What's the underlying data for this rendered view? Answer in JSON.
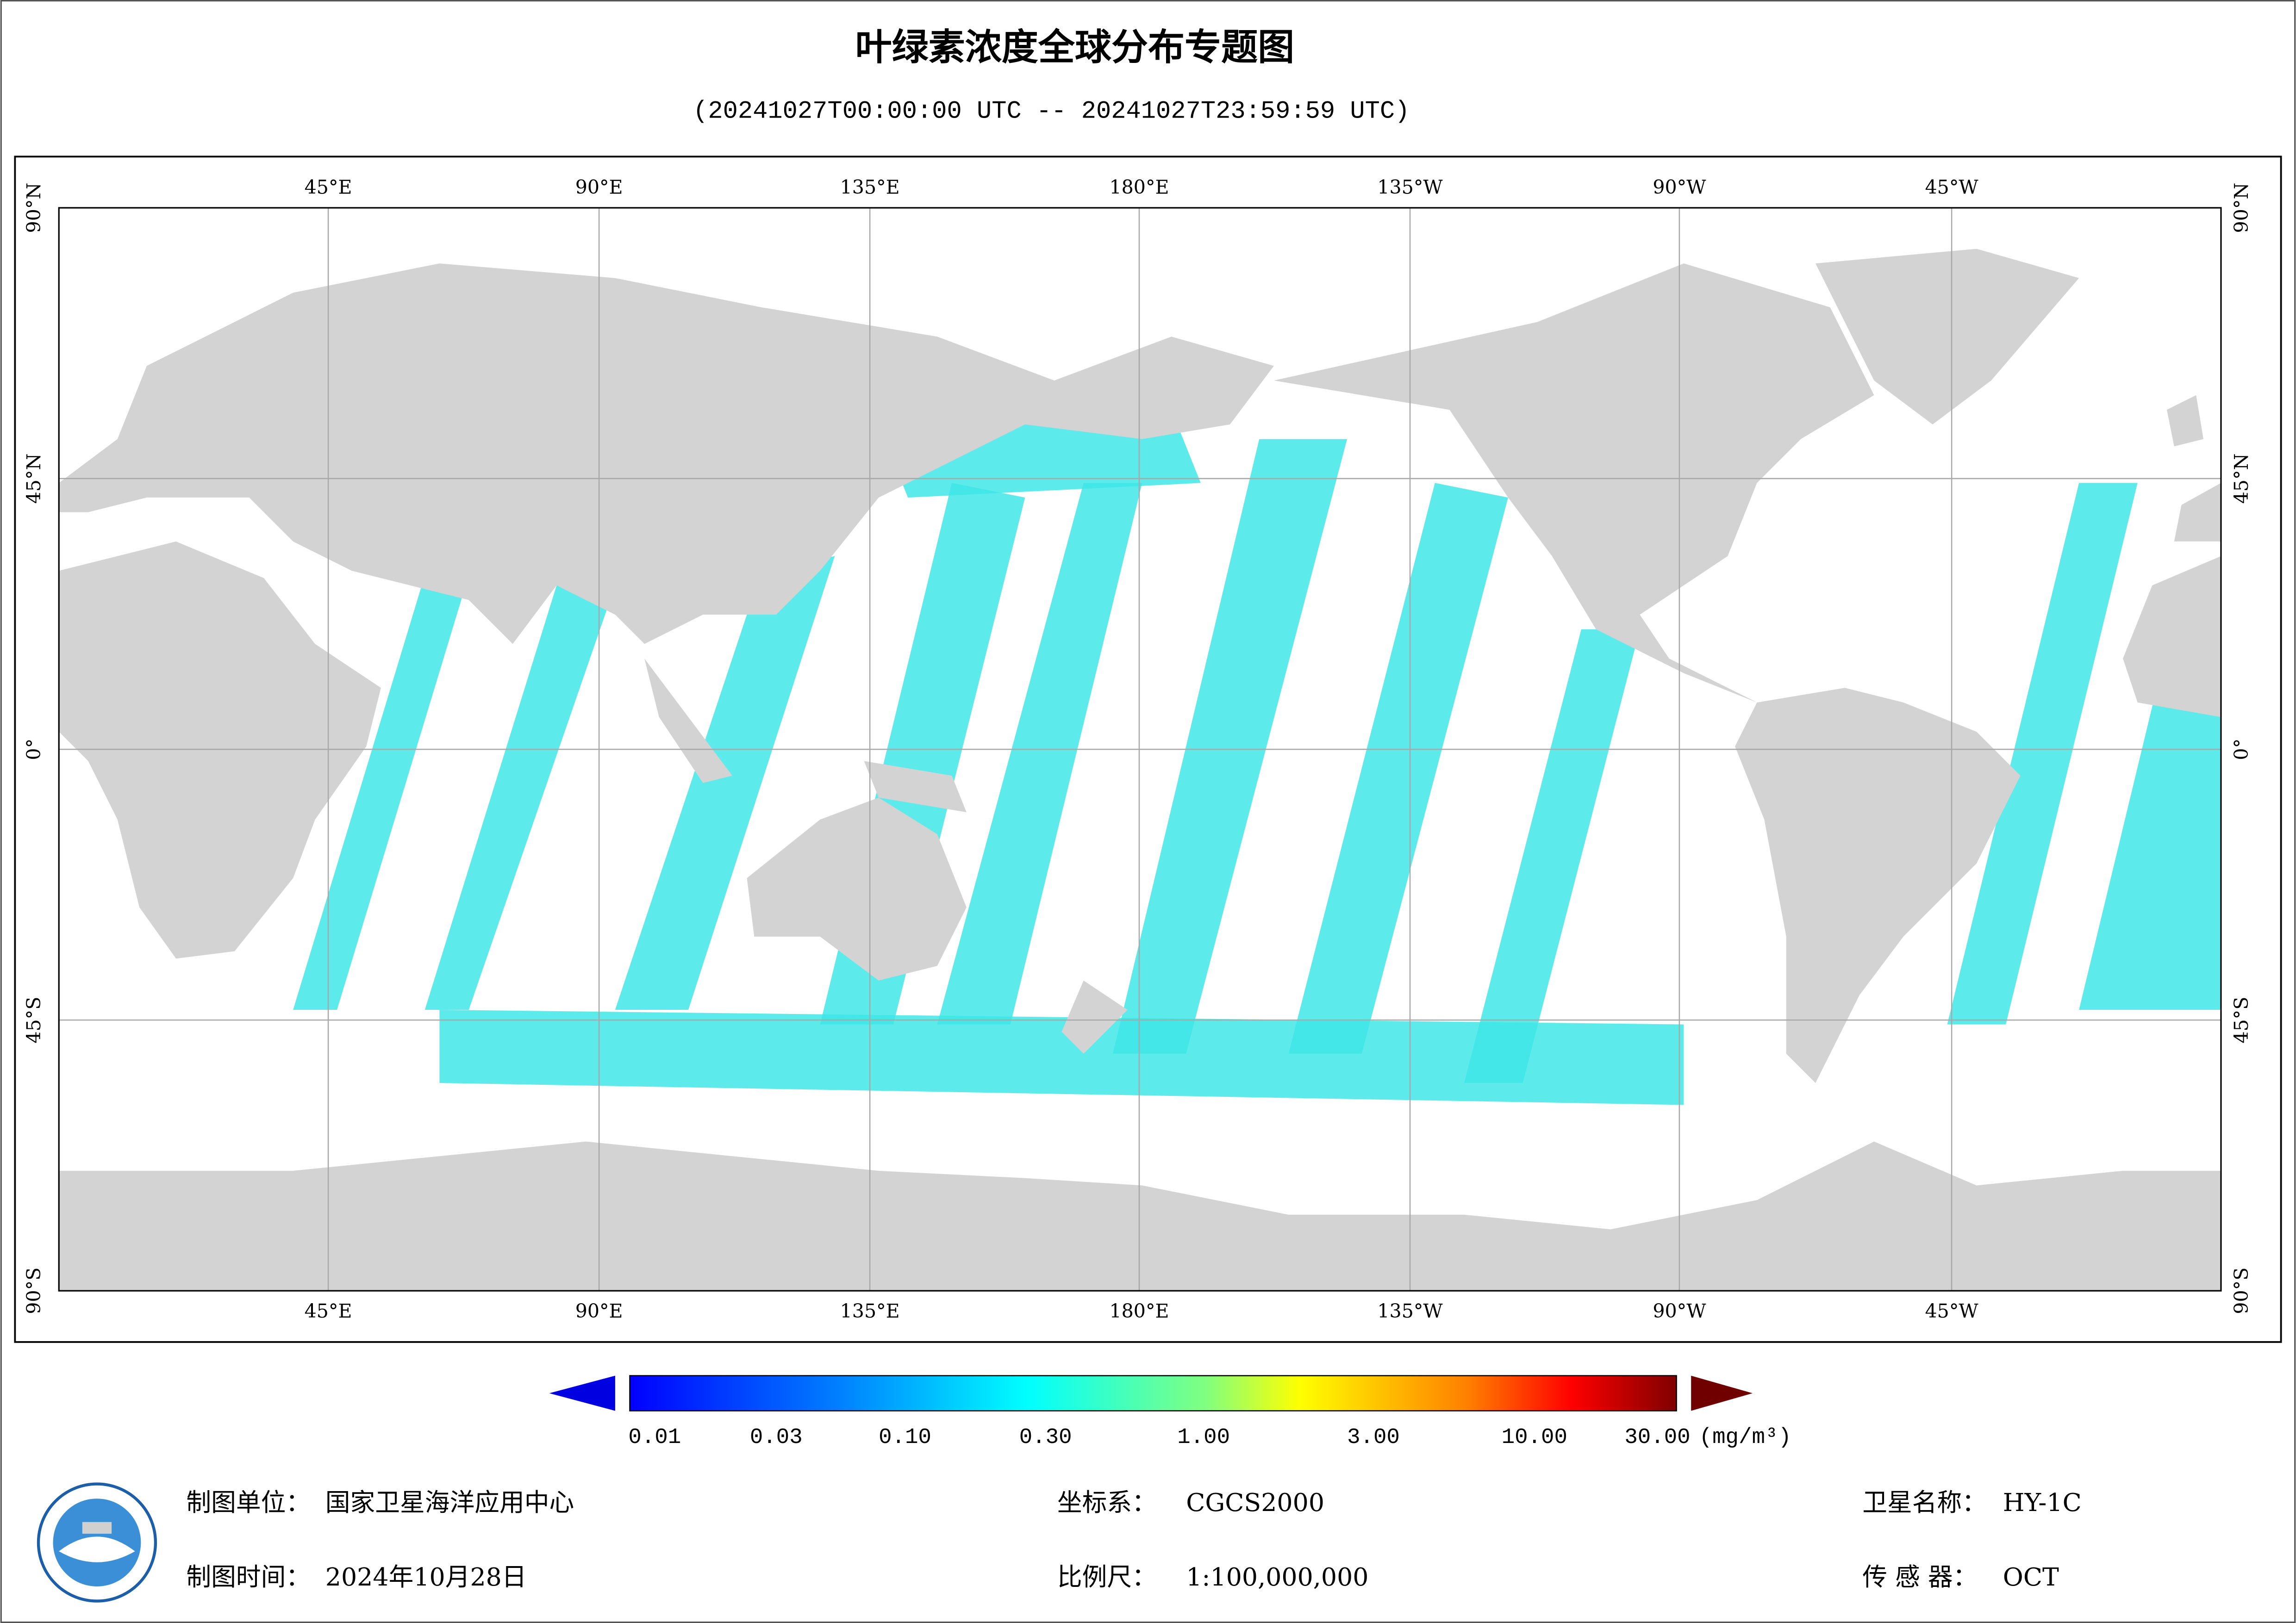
{
  "header": {
    "title": "叶绿素浓度全球分布专题图",
    "subtitle": "(20241027T00:00:00 UTC -- 20241027T23:59:59 UTC)"
  },
  "map": {
    "longitude_labels": [
      "45°E",
      "90°E",
      "135°E",
      "180°E",
      "135°W",
      "90°W",
      "45°W"
    ],
    "latitude_labels": [
      "90°N",
      "45°N",
      "0°",
      "45°S",
      "90°S"
    ]
  },
  "colorbar": {
    "labels": [
      "0.01",
      "0.03",
      "0.10",
      "0.30",
      "1.00",
      "3.00",
      "10.00",
      "30.00"
    ],
    "unit": "(mg/m³)"
  },
  "footer": {
    "organization": {
      "label": "制图单位：",
      "value": "国家卫星海洋应用中心"
    },
    "date": {
      "label": "制图时间：",
      "value": "2024年10月28日"
    },
    "coordinate_system": {
      "label": "坐标系：",
      "value": "CGCS2000"
    },
    "scale": {
      "label": "比例尺：",
      "value": "1:100,000,000"
    },
    "satellite": {
      "label": "卫星名称：",
      "value": "HY-1C"
    },
    "sensor": {
      "label": "传 感 器：",
      "value": "OCT"
    }
  }
}
